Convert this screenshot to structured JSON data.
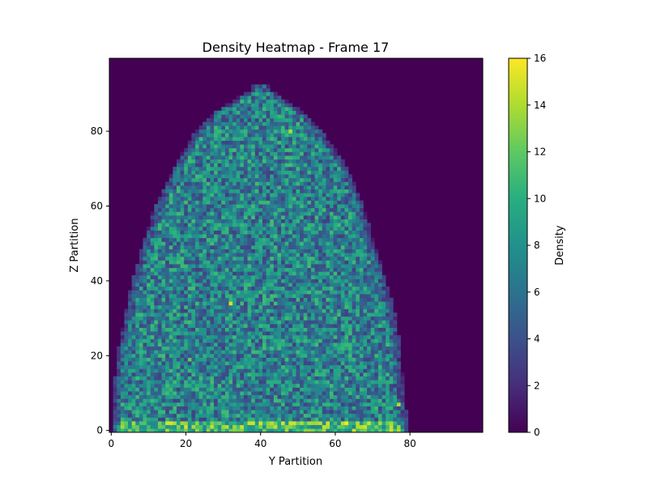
{
  "chart_data": {
    "type": "heatmap",
    "title": "Density Heatmap - Frame 17",
    "xlabel": "Y Partition",
    "ylabel": "Z Partition",
    "colorbar_label": "Density",
    "colormap": "viridis",
    "grid": false,
    "x_range": [
      -0.5,
      99.5
    ],
    "y_range": [
      -0.5,
      99.5
    ],
    "x_ticks": [
      0,
      20,
      40,
      60,
      80
    ],
    "y_ticks": [
      0,
      20,
      40,
      60,
      80
    ],
    "color_range": [
      0,
      16
    ],
    "color_ticks": [
      0,
      2,
      4,
      6,
      8,
      10,
      12,
      14,
      16
    ],
    "grid_size": [
      100,
      100
    ],
    "rows_profile": [
      {
        "z": 0,
        "y_min": 1,
        "y_max": 79
      },
      {
        "z": 10,
        "y_min": 1,
        "y_max": 78
      },
      {
        "z": 20,
        "y_min": 2,
        "y_max": 77
      },
      {
        "z": 30,
        "y_min": 4,
        "y_max": 76
      },
      {
        "z": 40,
        "y_min": 6,
        "y_max": 73
      },
      {
        "z": 50,
        "y_min": 9,
        "y_max": 70
      },
      {
        "z": 60,
        "y_min": 12,
        "y_max": 67
      },
      {
        "z": 70,
        "y_min": 17,
        "y_max": 63
      },
      {
        "z": 80,
        "y_min": 23,
        "y_max": 56
      },
      {
        "z": 85,
        "y_min": 28,
        "y_max": 51
      },
      {
        "z": 90,
        "y_min": 36,
        "y_max": 44
      }
    ],
    "interior_density_mean": 7,
    "bottom_row_density_mean": 11,
    "hotspots": [
      {
        "y": 32,
        "z": 34,
        "density": 15
      },
      {
        "y": 16,
        "z": 2,
        "density": 15
      },
      {
        "y": 46,
        "z": 2,
        "density": 15
      },
      {
        "y": 63,
        "z": 2,
        "density": 16
      },
      {
        "y": 77,
        "z": 7,
        "density": 14
      },
      {
        "y": 48,
        "z": 80,
        "density": 14
      },
      {
        "y": 21,
        "z": 19,
        "density": 12
      }
    ]
  }
}
